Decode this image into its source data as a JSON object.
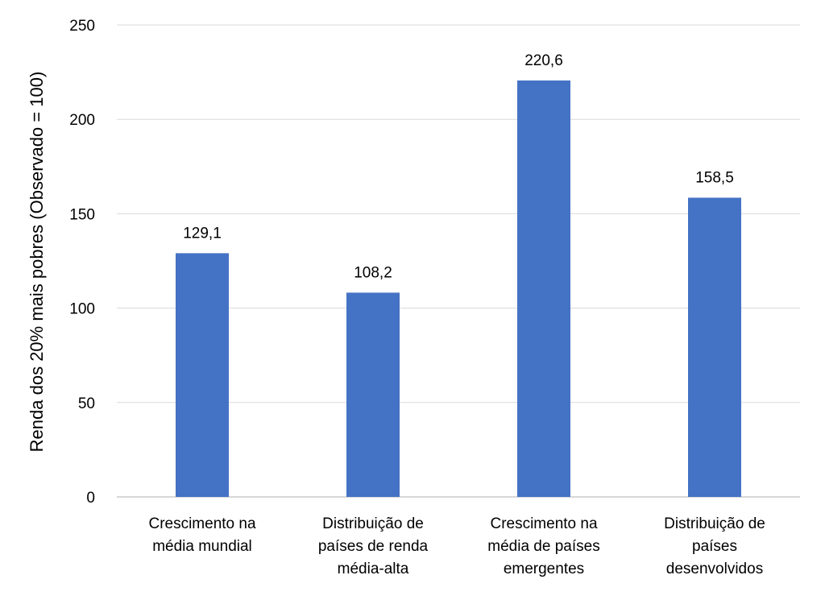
{
  "chart_data": {
    "type": "bar",
    "title": "",
    "xlabel": "",
    "ylabel": "Renda dos 20% mais pobres (Observado = 100)",
    "ylim": [
      0,
      250
    ],
    "yticks": [
      0,
      50,
      100,
      150,
      200,
      250
    ],
    "ytick_labels": [
      "0",
      "50",
      "100",
      "150",
      "200",
      "250"
    ],
    "grid": true,
    "legend": "none",
    "bar_color": "#4472C4",
    "categories": [
      [
        "Crescimento na",
        "média mundial"
      ],
      [
        "Distribuição de",
        "países de renda",
        "média-alta"
      ],
      [
        "Crescimento na",
        "média de países",
        "emergentes"
      ],
      [
        "Distribuição de",
        "países",
        "desenvolvidos"
      ]
    ],
    "values": [
      129.1,
      108.2,
      220.6,
      158.5
    ],
    "data_labels": [
      "129,1",
      "108,2",
      "220,6",
      "158,5"
    ]
  }
}
